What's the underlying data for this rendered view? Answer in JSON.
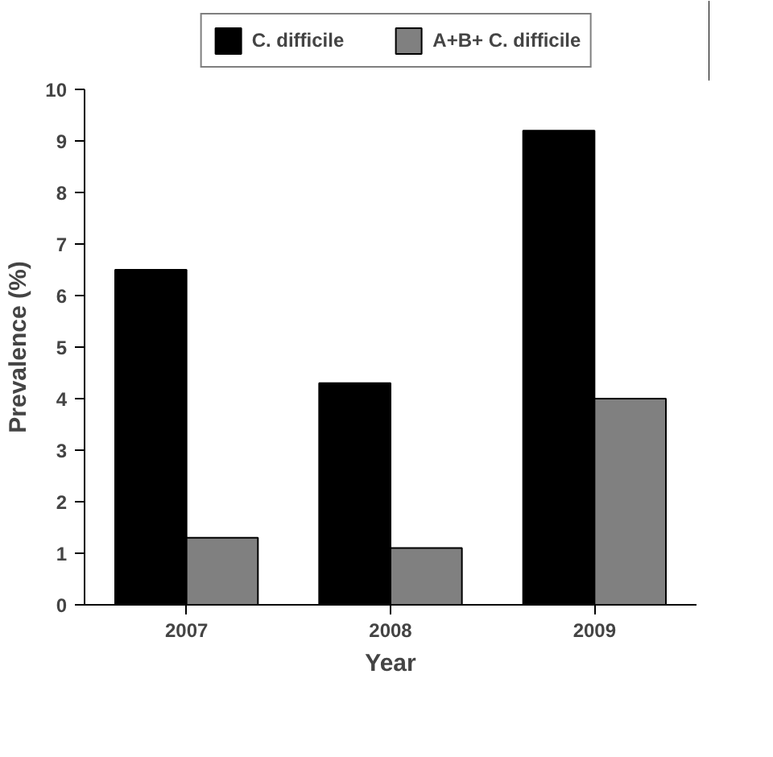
{
  "chart_data": {
    "type": "bar",
    "xlabel": "Year",
    "ylabel": "Prevalence (%)",
    "categories": [
      "2007",
      "2008",
      "2009"
    ],
    "series": [
      {
        "name": "C. difficile",
        "color": "#000000",
        "values": [
          6.5,
          4.3,
          9.2
        ]
      },
      {
        "name": "A+B+ C. difficile",
        "color": "#808080",
        "values": [
          1.3,
          1.1,
          4.0
        ]
      }
    ],
    "ylim": [
      0,
      10
    ],
    "yticks": [
      0,
      1,
      2,
      3,
      4,
      5,
      6,
      7,
      8,
      9,
      10
    ],
    "grid": false,
    "legend": "top"
  }
}
